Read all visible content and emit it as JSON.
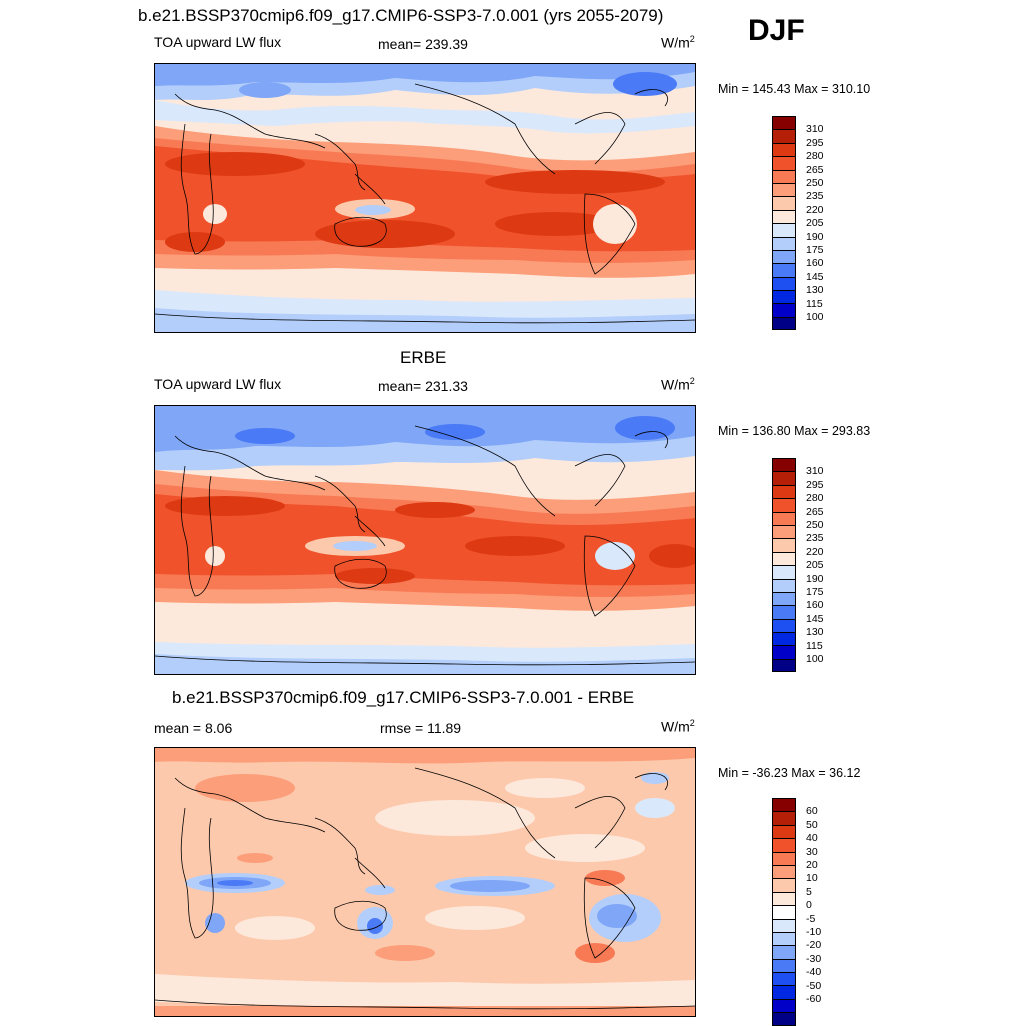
{
  "season": "DJF",
  "colors": {
    "flux": [
      "#000087",
      "#0000C8",
      "#0028E0",
      "#1E4FF0",
      "#4A7AF5",
      "#7FA6F7",
      "#B3CEFA",
      "#DAE8FC",
      "#FDE9DC",
      "#FDC9AC",
      "#FC9E79",
      "#F87A55",
      "#F0532B",
      "#DD3A13",
      "#B51E07",
      "#870000"
    ],
    "diff": [
      "#000087",
      "#0000C8",
      "#0028E0",
      "#1E4FF0",
      "#4A7AF5",
      "#7FA6F7",
      "#B3CEFA",
      "#DAE8FC",
      "#FFFFFF",
      "#FDE9DC",
      "#FDC9AC",
      "#FC9E79",
      "#F87A55",
      "#F0532B",
      "#DD3A13",
      "#B51E07",
      "#870000"
    ]
  },
  "panels": [
    {
      "title": "b.e21.BSSP370cmip6.f09_g17.CMIP6-SSP3-7.0.001 (yrs 2055-2079)",
      "left_label": "TOA upward LW flux",
      "center_label": "mean= 239.39",
      "units": "W/m",
      "units_sup": "2",
      "minmax": "Min = 145.43 Max = 310.10",
      "ticks": [
        "310",
        "295",
        "280",
        "265",
        "250",
        "235",
        "220",
        "205",
        "190",
        "175",
        "160",
        "145",
        "130",
        "115",
        "100"
      ]
    },
    {
      "title": "ERBE",
      "left_label": "TOA upward LW flux",
      "center_label": "mean= 231.33",
      "units": "W/m",
      "units_sup": "2",
      "minmax": "Min = 136.80 Max = 293.83",
      "ticks": [
        "310",
        "295",
        "280",
        "265",
        "250",
        "235",
        "220",
        "205",
        "190",
        "175",
        "160",
        "145",
        "130",
        "115",
        "100"
      ]
    },
    {
      "title": "b.e21.BSSP370cmip6.f09_g17.CMIP6-SSP3-7.0.001 - ERBE",
      "left_label": "mean =   8.06",
      "center_label": "rmse =  11.89",
      "units": "W/m",
      "units_sup": "2",
      "minmax": "Min = -36.23 Max =  36.12",
      "ticks": [
        "60",
        "50",
        "40",
        "30",
        "20",
        "10",
        "5",
        "0",
        "-5",
        "-10",
        "-20",
        "-30",
        "-40",
        "-50",
        "-60"
      ]
    }
  ]
}
